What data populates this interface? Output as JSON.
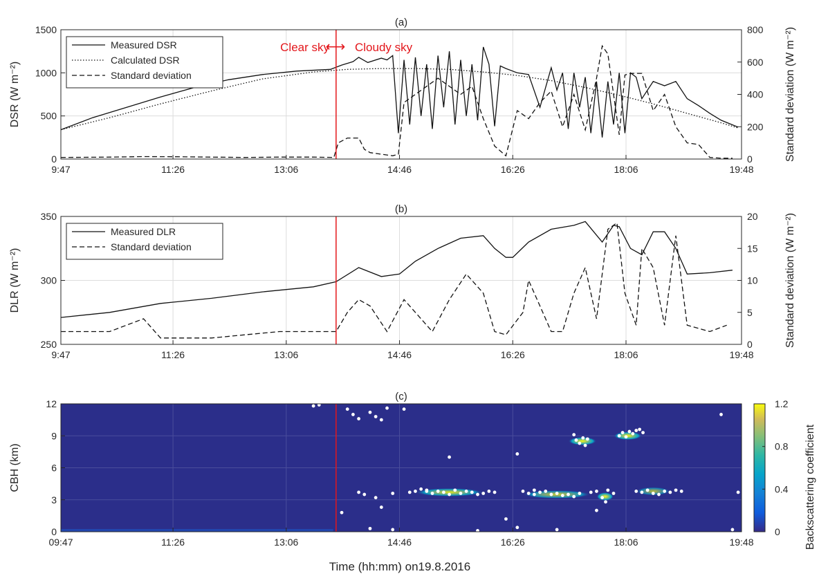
{
  "figure_xlabel": "Time (hh:mm) on19.8.2016",
  "annotation": {
    "left": "Clear sky",
    "arrow": "⟷",
    "right": "Cloudy sky",
    "divider_time": "13:50"
  },
  "colors": {
    "divider": "#e3161b",
    "axes": "#262626",
    "grid": "#dcdcdc",
    "field": "#2b2e8a"
  },
  "chart_data": [
    {
      "panel_label": "(a)",
      "type": "line",
      "xlabel": "",
      "ylabel": "DSR (W m⁻²)",
      "ylabel_right": "Standard deviation (W m⁻²)",
      "xticks": [
        "9:47",
        "11:26",
        "13:06",
        "14:46",
        "16:26",
        "18:06",
        "19:48"
      ],
      "xlim": [
        "9:47",
        "19:48"
      ],
      "ylim": [
        0,
        1500
      ],
      "yticks": [
        0,
        500,
        1000,
        1500
      ],
      "ylim_right": [
        0,
        800
      ],
      "yticks_right": [
        0,
        200,
        400,
        600,
        800
      ],
      "grid": true,
      "legend_position": "top-left",
      "series": [
        {
          "name": "Measured DSR",
          "axis": "left",
          "style": "solid",
          "x": [
            "9:47",
            "10:15",
            "10:45",
            "11:15",
            "11:45",
            "12:15",
            "12:45",
            "13:15",
            "13:45",
            "13:55",
            "14:05",
            "14:10",
            "14:18",
            "14:30",
            "14:35",
            "14:40",
            "14:45",
            "14:50",
            "14:55",
            "15:00",
            "15:05",
            "15:10",
            "15:15",
            "15:20",
            "15:25",
            "15:30",
            "15:35",
            "15:40",
            "15:45",
            "15:50",
            "15:55",
            "16:00",
            "16:05",
            "16:10",
            "16:15",
            "16:20",
            "16:30",
            "16:40",
            "16:50",
            "17:00",
            "17:05",
            "17:10",
            "17:15",
            "17:20",
            "17:25",
            "17:30",
            "17:35",
            "17:40",
            "17:45",
            "17:50",
            "17:55",
            "18:00",
            "18:05",
            "18:10",
            "18:15",
            "18:20",
            "18:30",
            "18:40",
            "18:50",
            "19:00",
            "19:10",
            "19:20",
            "19:30",
            "19:45"
          ],
          "values": [
            340,
            480,
            600,
            720,
            830,
            920,
            980,
            1020,
            1040,
            1090,
            1130,
            1180,
            1120,
            1170,
            1150,
            1200,
            300,
            1150,
            400,
            1180,
            500,
            1100,
            350,
            1200,
            600,
            1250,
            400,
            1150,
            500,
            1100,
            450,
            1300,
            1100,
            380,
            1080,
            1050,
            1000,
            980,
            600,
            1060,
            800,
            1000,
            350,
            1000,
            600,
            950,
            300,
            900,
            250,
            900,
            400,
            1000,
            300,
            1000,
            950,
            700,
            900,
            850,
            900,
            700,
            620,
            530,
            450,
            370
          ]
        },
        {
          "name": "Calculated DSR",
          "axis": "left",
          "style": "dotted",
          "x": [
            "9:47",
            "10:30",
            "11:15",
            "12:00",
            "12:45",
            "13:30",
            "14:00",
            "14:30",
            "15:00",
            "15:30",
            "16:00",
            "16:30",
            "17:00",
            "17:30",
            "18:00",
            "18:30",
            "19:00",
            "19:30",
            "19:45"
          ],
          "values": [
            340,
            480,
            640,
            790,
            930,
            1010,
            1040,
            1050,
            1050,
            1040,
            1010,
            970,
            910,
            830,
            740,
            640,
            530,
            420,
            360
          ]
        },
        {
          "name": "Standard deviation",
          "axis": "right",
          "style": "dashed",
          "x": [
            "9:47",
            "10:30",
            "11:00",
            "11:30",
            "12:00",
            "12:30",
            "13:00",
            "13:30",
            "13:48",
            "13:52",
            "14:00",
            "14:10",
            "14:15",
            "14:20",
            "14:30",
            "14:40",
            "14:45",
            "14:50",
            "15:00",
            "15:20",
            "15:40",
            "15:50",
            "16:00",
            "16:10",
            "16:20",
            "16:30",
            "16:40",
            "16:50",
            "17:00",
            "17:10",
            "17:20",
            "17:30",
            "17:40",
            "17:45",
            "17:50",
            "18:00",
            "18:05",
            "18:10",
            "18:20",
            "18:30",
            "18:40",
            "18:50",
            "19:00",
            "19:10",
            "19:20",
            "19:30",
            "19:40"
          ],
          "values": [
            10,
            12,
            15,
            14,
            12,
            10,
            12,
            12,
            10,
            100,
            130,
            130,
            60,
            40,
            30,
            20,
            30,
            350,
            400,
            500,
            400,
            450,
            250,
            80,
            20,
            300,
            250,
            350,
            420,
            200,
            400,
            180,
            500,
            700,
            650,
            150,
            520,
            530,
            530,
            300,
            400,
            200,
            100,
            90,
            10,
            5,
            5
          ]
        }
      ]
    },
    {
      "panel_label": "(b)",
      "type": "line",
      "xlabel": "",
      "ylabel": "DLR (W m⁻²)",
      "ylabel_right": "Standard deviation (W m⁻²)",
      "xticks": [
        "9:47",
        "11:26",
        "13:06",
        "14:46",
        "16:26",
        "18:06",
        "19:48"
      ],
      "xlim": [
        "9:47",
        "19:48"
      ],
      "ylim": [
        250,
        350
      ],
      "yticks": [
        250,
        300,
        350
      ],
      "ylim_right": [
        0,
        20
      ],
      "yticks_right": [
        0,
        5,
        10,
        15,
        20
      ],
      "grid": true,
      "legend_position": "top-left",
      "series": [
        {
          "name": "Measured DLR",
          "axis": "left",
          "style": "solid",
          "x": [
            "9:47",
            "10:30",
            "11:15",
            "12:00",
            "12:45",
            "13:30",
            "13:50",
            "14:10",
            "14:30",
            "14:46",
            "15:00",
            "15:20",
            "15:40",
            "16:00",
            "16:10",
            "16:20",
            "16:26",
            "16:40",
            "17:00",
            "17:20",
            "17:30",
            "17:45",
            "17:55",
            "18:00",
            "18:10",
            "18:20",
            "18:30",
            "18:40",
            "18:50",
            "19:00",
            "19:20",
            "19:40"
          ],
          "values": [
            271,
            275,
            282,
            286,
            291,
            295,
            299,
            310,
            303,
            305,
            315,
            325,
            333,
            335,
            325,
            318,
            318,
            330,
            340,
            343,
            346,
            330,
            343,
            342,
            325,
            320,
            338,
            338,
            325,
            305,
            306,
            308
          ]
        },
        {
          "name": "Standard deviation",
          "axis": "right",
          "style": "dashed",
          "x": [
            "9:47",
            "10:30",
            "11:00",
            "11:15",
            "11:30",
            "12:00",
            "12:30",
            "13:00",
            "13:30",
            "13:50",
            "14:00",
            "14:10",
            "14:20",
            "14:35",
            "14:50",
            "15:00",
            "15:15",
            "15:30",
            "15:45",
            "16:00",
            "16:10",
            "16:20",
            "16:35",
            "16:40",
            "16:50",
            "17:00",
            "17:10",
            "17:20",
            "17:30",
            "17:40",
            "17:50",
            "17:58",
            "18:05",
            "18:15",
            "18:20",
            "18:30",
            "18:40",
            "18:50",
            "19:00",
            "19:20",
            "19:35"
          ],
          "values": [
            2,
            2,
            4,
            1,
            1,
            1,
            1.5,
            2,
            2,
            2,
            5,
            7,
            6,
            2,
            7,
            5,
            2,
            7,
            11,
            8,
            2,
            1.5,
            5,
            10,
            6,
            2,
            2,
            8,
            12,
            4,
            18,
            19,
            8,
            3,
            15,
            12,
            3,
            17,
            3,
            2,
            3
          ]
        }
      ]
    },
    {
      "panel_label": "(c)",
      "type": "heatmap",
      "xlabel": "Time (hh:mm) on19.8.2016",
      "ylabel": "CBH (km)",
      "xticks": [
        "09:47",
        "11:26",
        "13:06",
        "14:46",
        "16:26",
        "18:06",
        "19:48"
      ],
      "xlim": [
        "09:47",
        "19:48"
      ],
      "ylim": [
        0,
        12
      ],
      "yticks": [
        0,
        3,
        6,
        9,
        12
      ],
      "colorbar_label": "Backscattering coefficient",
      "colorbar_ticks": [
        0,
        0.4,
        0.8,
        1.2
      ],
      "colorbar_lim": [
        0,
        1.2
      ],
      "grid": true,
      "cloud_layers": [
        {
          "t_start": "15:00",
          "t_end": "16:00",
          "km": 3.7,
          "level": 0.9
        },
        {
          "t_start": "16:35",
          "t_end": "17:35",
          "km": 3.5,
          "level": 0.8
        },
        {
          "t_start": "17:40",
          "t_end": "17:55",
          "km": 3.3,
          "level": 1.0
        },
        {
          "t_start": "18:15",
          "t_end": "18:45",
          "km": 3.8,
          "level": 0.7
        },
        {
          "t_start": "17:15",
          "t_end": "17:40",
          "km": 8.5,
          "level": 1.1
        },
        {
          "t_start": "17:55",
          "t_end": "18:20",
          "km": 9.0,
          "level": 1.0
        }
      ],
      "cbh_points": {
        "t": [
          "13:30",
          "13:35",
          "14:00",
          "14:05",
          "14:10",
          "14:20",
          "14:25",
          "14:30",
          "14:35",
          "14:50",
          "15:30",
          "16:30",
          "16:45",
          "19:30",
          "14:40",
          "15:10",
          "14:10",
          "14:15",
          "14:25",
          "14:55",
          "15:00",
          "15:05",
          "15:10",
          "15:15",
          "15:20",
          "15:25",
          "15:30",
          "15:35",
          "15:40",
          "15:45",
          "15:50",
          "15:55",
          "16:00",
          "16:05",
          "16:10",
          "16:35",
          "16:40",
          "16:45",
          "16:50",
          "16:55",
          "17:00",
          "17:05",
          "17:10",
          "17:15",
          "17:20",
          "17:25",
          "17:35",
          "17:40",
          "17:45",
          "17:50",
          "17:55",
          "18:15",
          "18:20",
          "18:25",
          "18:30",
          "18:35",
          "18:40",
          "18:45",
          "18:50",
          "18:55",
          "19:45",
          "17:20",
          "17:22",
          "17:25",
          "17:28",
          "17:30",
          "17:32",
          "18:00",
          "18:03",
          "18:06",
          "18:09",
          "18:12",
          "18:15",
          "18:18",
          "18:21",
          "14:20",
          "14:40",
          "15:55",
          "16:30",
          "17:05",
          "17:40",
          "17:48",
          "16:20",
          "19:40",
          "13:55",
          "14:30"
        ],
        "km": [
          11.8,
          11.9,
          11.5,
          11.0,
          10.6,
          11.2,
          10.8,
          10.5,
          11.6,
          11.5,
          7.0,
          7.3,
          3.5,
          11.0,
          3.6,
          3.8,
          3.7,
          3.5,
          3.2,
          3.7,
          3.8,
          4.0,
          3.9,
          3.6,
          3.8,
          3.7,
          3.5,
          3.9,
          3.6,
          3.8,
          3.7,
          3.5,
          3.6,
          3.8,
          3.7,
          3.8,
          3.6,
          3.9,
          3.7,
          3.8,
          3.5,
          3.6,
          3.4,
          3.5,
          3.3,
          3.6,
          3.7,
          3.8,
          3.2,
          3.9,
          3.6,
          3.8,
          3.7,
          3.9,
          3.6,
          3.5,
          3.8,
          3.7,
          3.9,
          3.8,
          3.7,
          9.1,
          8.6,
          8.3,
          8.8,
          8.1,
          8.7,
          9.0,
          9.3,
          8.9,
          9.4,
          9.2,
          9.5,
          9.6,
          9.3,
          0.3,
          0.2,
          0.1,
          0.4,
          0.2,
          2.0,
          2.8,
          1.2,
          0.2,
          1.8,
          2.3
        ]
      }
    }
  ]
}
